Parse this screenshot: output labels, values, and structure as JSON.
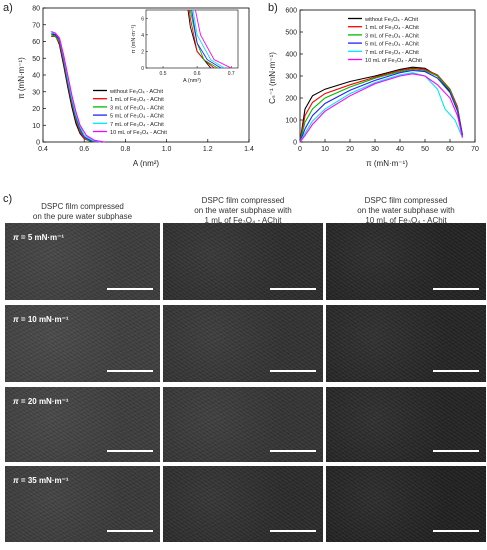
{
  "panel_labels": {
    "a": "a)",
    "b": "b)",
    "c": "c)"
  },
  "chart_data": [
    {
      "type": "line",
      "panel": "a",
      "ylabel_main": "π (mN·m⁻¹)",
      "xlabel_main": "A (nm²)",
      "xticks": [
        "0.4",
        "0.6",
        "0.8",
        "1.0",
        "1.2",
        "1.4"
      ],
      "yticks": [
        "0",
        "10",
        "20",
        "30",
        "40",
        "50",
        "60",
        "70",
        "80"
      ],
      "xlim": [
        0.4,
        1.4
      ],
      "ylim": [
        0,
        80
      ],
      "legend": [
        "without Fe₃O₄ - AChit",
        "1 mL of Fe₃O₄ - AChit",
        "3 mL of Fe₃O₄ - AChit",
        "5 mL of Fe₃O₄ - AChit",
        "7 mL of Fe₃O₄ - AChit",
        "10 mL of Fe₃O₄ - AChit"
      ],
      "colors": [
        "#000000",
        "#ff0000",
        "#00bb00",
        "#2222ff",
        "#00e5ff",
        "#ff00ff"
      ],
      "series": [
        {
          "name": "without Fe₃O₄ - AChit",
          "x": [
            0.44,
            0.46,
            0.48,
            0.5,
            0.52,
            0.54,
            0.56,
            0.58,
            0.6,
            0.62,
            0.64
          ],
          "y": [
            64,
            64,
            58,
            46,
            33,
            21,
            11,
            5,
            2,
            1,
            0
          ]
        },
        {
          "name": "1 mL of Fe₃O₄ - AChit",
          "x": [
            0.44,
            0.46,
            0.48,
            0.5,
            0.52,
            0.54,
            0.56,
            0.58,
            0.6,
            0.62,
            0.65
          ],
          "y": [
            63,
            63,
            59,
            48,
            35,
            23,
            13,
            6,
            2,
            1,
            0
          ]
        },
        {
          "name": "3 mL of Fe₃O₄ - AChit",
          "x": [
            0.44,
            0.46,
            0.48,
            0.5,
            0.52,
            0.54,
            0.56,
            0.58,
            0.6,
            0.62,
            0.66
          ],
          "y": [
            64,
            63,
            60,
            49,
            36,
            24,
            14,
            7,
            3,
            1,
            0
          ]
        },
        {
          "name": "5 mL of Fe₃O₄ - AChit",
          "x": [
            0.44,
            0.46,
            0.48,
            0.5,
            0.52,
            0.54,
            0.56,
            0.58,
            0.6,
            0.63,
            0.67
          ],
          "y": [
            65,
            64,
            61,
            50,
            37,
            25,
            15,
            8,
            3,
            1,
            0
          ]
        },
        {
          "name": "7 mL of Fe₃O₄ - AChit",
          "x": [
            0.44,
            0.46,
            0.48,
            0.5,
            0.52,
            0.54,
            0.56,
            0.58,
            0.6,
            0.64,
            0.68
          ],
          "y": [
            65,
            65,
            62,
            51,
            38,
            26,
            16,
            9,
            4,
            1,
            0
          ]
        },
        {
          "name": "10 mL of Fe₃O₄ - AChit",
          "x": [
            0.44,
            0.46,
            0.48,
            0.5,
            0.52,
            0.54,
            0.56,
            0.58,
            0.61,
            0.65,
            0.7
          ],
          "y": [
            66,
            65,
            62,
            52,
            40,
            28,
            18,
            10,
            4,
            1,
            0
          ]
        }
      ],
      "inset": {
        "ylabel": "π (mN·m⁻¹)",
        "xlabel": "A (nm²)",
        "xticks": [
          "0.5",
          "0.6",
          "0.7"
        ],
        "yticks": [
          "0",
          "2",
          "4",
          "6"
        ],
        "xlim": [
          0.45,
          0.72
        ],
        "ylim": [
          0,
          7
        ]
      }
    },
    {
      "type": "line",
      "panel": "b",
      "ylabel": "Cₛ⁻¹ (mN·m⁻¹)",
      "xlabel": "π (mN·m⁻¹)",
      "xticks": [
        "0",
        "10",
        "20",
        "30",
        "40",
        "50",
        "60",
        "70"
      ],
      "yticks": [
        "0",
        "100",
        "200",
        "300",
        "400",
        "500",
        "600"
      ],
      "xlim": [
        0,
        70
      ],
      "ylim": [
        0,
        600
      ],
      "legend": [
        "without Fe₃O₄ - AChit",
        "1 mL of Fe₃O₄ - AChit",
        "3 mL of Fe₃O₄ - AChit",
        "5 mL of Fe₃O₄ - AChit",
        "7 mL of Fe₃O₄ - AChit",
        "10 mL of Fe₃O₄ - AChit"
      ],
      "colors": [
        "#000000",
        "#ff0000",
        "#00bb00",
        "#2222ff",
        "#00e5ff",
        "#ff00ff"
      ],
      "series": [
        {
          "name": "without Fe₃O₄ - AChit",
          "x": [
            0,
            2,
            5,
            10,
            20,
            30,
            40,
            45,
            50,
            55,
            60,
            63,
            65
          ],
          "y": [
            0,
            150,
            210,
            240,
            275,
            300,
            330,
            340,
            335,
            300,
            230,
            150,
            30
          ]
        },
        {
          "name": "1 mL of Fe₃O₄ - AChit",
          "x": [
            0,
            2,
            5,
            10,
            20,
            30,
            40,
            45,
            50,
            55,
            60,
            63,
            65
          ],
          "y": [
            0,
            120,
            180,
            220,
            260,
            295,
            325,
            335,
            330,
            305,
            240,
            160,
            30
          ]
        },
        {
          "name": "3 mL of Fe₃O₄ - AChit",
          "x": [
            0,
            2,
            5,
            10,
            20,
            30,
            40,
            45,
            50,
            55,
            60,
            63,
            65
          ],
          "y": [
            0,
            90,
            150,
            200,
            250,
            290,
            320,
            330,
            325,
            300,
            235,
            150,
            30
          ]
        },
        {
          "name": "5 mL of Fe₃O₄ - AChit",
          "x": [
            0,
            2,
            5,
            10,
            20,
            30,
            40,
            45,
            50,
            55,
            60,
            63,
            65
          ],
          "y": [
            0,
            60,
            120,
            175,
            235,
            280,
            315,
            325,
            320,
            290,
            225,
            140,
            30
          ]
        },
        {
          "name": "7 mL of Fe₃O₄ - AChit",
          "x": [
            0,
            2,
            5,
            10,
            20,
            30,
            40,
            45,
            50,
            55,
            58,
            62,
            65
          ],
          "y": [
            0,
            40,
            95,
            150,
            220,
            270,
            305,
            315,
            300,
            240,
            150,
            100,
            20
          ]
        },
        {
          "name": "10 mL of Fe₃O₄ - AChit",
          "x": [
            0,
            2,
            5,
            10,
            20,
            30,
            40,
            45,
            50,
            55,
            60,
            63,
            65
          ],
          "y": [
            0,
            30,
            80,
            140,
            210,
            265,
            300,
            310,
            300,
            260,
            200,
            120,
            20
          ]
        }
      ]
    }
  ],
  "bam": {
    "columns": [
      {
        "line1": "DSPC film compressed",
        "line2": "on the pure water subphase",
        "line3": ""
      },
      {
        "line1": "DSPC film compressed",
        "line2": "on the water subphase with",
        "line3": "1 mL of Fe₃O₄ - AChit"
      },
      {
        "line1": "DSPC film compressed",
        "line2": "on the water subphase with",
        "line3": "10 mL of Fe₃O₄ - AChit"
      }
    ],
    "rows": [
      {
        "pi_symbol": "π",
        "label": " = 5 mN·m⁻¹"
      },
      {
        "pi_symbol": "π",
        "label": " = 10 mN·m⁻¹"
      },
      {
        "pi_symbol": "π",
        "label": " = 20 mN·m⁻¹"
      },
      {
        "pi_symbol": "π",
        "label": " = 35 mN·m⁻¹"
      }
    ]
  }
}
